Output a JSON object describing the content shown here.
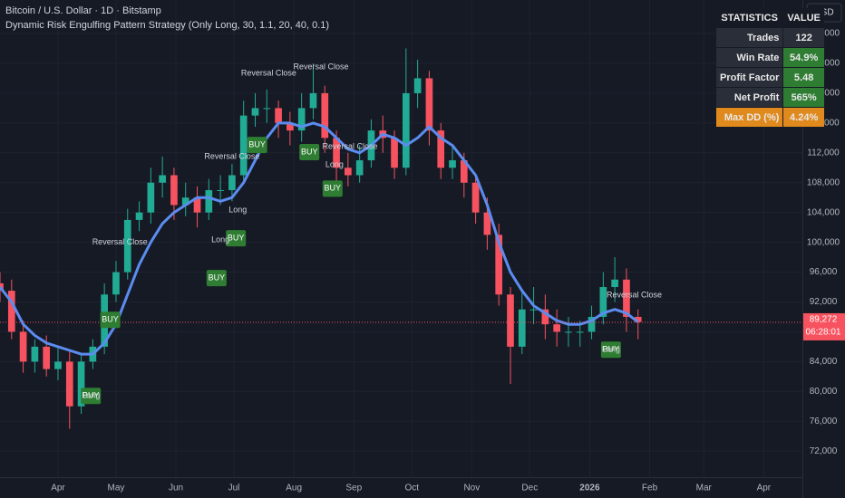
{
  "chart_data": {
    "type": "candlestick",
    "title": "Bitcoin / U.S. Dollar · 1D · Bitstamp",
    "subtitle": "Dynamic Risk Engulfing Pattern Strategy (Only Long, 30, 1.1, 20, 40, 0.1)",
    "currency": "USD",
    "up_color": "#22ab94",
    "down_color": "#f7525f",
    "x": [
      0,
      6,
      12,
      18,
      24,
      30,
      36,
      42,
      48,
      54,
      60,
      66,
      72,
      78,
      84,
      90,
      96,
      102,
      108,
      114,
      120,
      126,
      132,
      138,
      144,
      150,
      156,
      162,
      168,
      174,
      180,
      186,
      192,
      198,
      204,
      210,
      216,
      222,
      228,
      234,
      240,
      246,
      252,
      258,
      264,
      270,
      276,
      282,
      288,
      294,
      300,
      306,
      312,
      318,
      324,
      330
    ],
    "open": [
      94500,
      93500,
      88000,
      84000,
      86000,
      83000,
      84000,
      78000,
      84000,
      86000,
      93000,
      96000,
      103000,
      104000,
      108000,
      109000,
      105000,
      106000,
      104000,
      107000,
      107000,
      109000,
      117000,
      118000,
      118000,
      116000,
      115000,
      118000,
      120000,
      114000,
      110000,
      109000,
      111000,
      115000,
      114000,
      110000,
      120000,
      122000,
      115000,
      110000,
      111000,
      108000,
      104000,
      101000,
      93000,
      86000,
      91000,
      91000,
      89000,
      88000,
      88000,
      88000,
      90000,
      94000,
      95000,
      90000
    ],
    "high": [
      96000,
      95000,
      89500,
      87000,
      87500,
      86000,
      85500,
      85000,
      87000,
      94500,
      97500,
      104500,
      105500,
      110000,
      111500,
      110000,
      108000,
      107500,
      108500,
      109000,
      110500,
      119000,
      120000,
      120500,
      119000,
      117500,
      120000,
      124000,
      121000,
      115000,
      112000,
      113000,
      116500,
      117000,
      115000,
      126000,
      124500,
      123000,
      116000,
      113000,
      112000,
      109000,
      106000,
      102500,
      94000,
      93500,
      94000,
      93000,
      91000,
      90000,
      89500,
      91500,
      96000,
      98000,
      96500,
      91000
    ],
    "low": [
      92000,
      87000,
      82500,
      82500,
      82000,
      81500,
      75000,
      77000,
      83000,
      85000,
      92000,
      95000,
      101500,
      102500,
      106000,
      103000,
      103500,
      102000,
      103000,
      105000,
      105500,
      108000,
      115500,
      116000,
      114000,
      113000,
      113500,
      116500,
      112000,
      108000,
      107500,
      108000,
      110000,
      112000,
      108500,
      109000,
      118000,
      113000,
      108500,
      108500,
      106000,
      102500,
      99000,
      91500,
      81000,
      85000,
      89000,
      87000,
      86000,
      86000,
      86000,
      87000,
      89000,
      92000,
      88000,
      87000
    ],
    "close": [
      93500,
      88000,
      84000,
      86000,
      83000,
      84000,
      78000,
      84000,
      86000,
      93000,
      96000,
      103000,
      104000,
      108000,
      109000,
      105000,
      106000,
      104000,
      107000,
      107000,
      109000,
      117000,
      118000,
      118000,
      116000,
      115000,
      118000,
      120000,
      114000,
      110000,
      109000,
      111000,
      115000,
      114000,
      110000,
      120000,
      122000,
      115000,
      110000,
      111000,
      108000,
      104000,
      101000,
      93000,
      86000,
      91000,
      91000,
      89000,
      88000,
      88000,
      88000,
      90000,
      94000,
      95000,
      90000,
      89300
    ],
    "moving_average": {
      "color": "#5b8cf0",
      "values": [
        94000,
        92000,
        89000,
        87500,
        86500,
        86000,
        85500,
        85000,
        85000,
        86500,
        89000,
        93000,
        97000,
        100000,
        102500,
        104000,
        105000,
        106000,
        106000,
        105500,
        106000,
        108000,
        111000,
        114000,
        116000,
        116000,
        115500,
        116000,
        115500,
        114000,
        112500,
        112000,
        113000,
        114500,
        114000,
        113000,
        114000,
        115500,
        114000,
        113000,
        111000,
        109000,
        105000,
        100000,
        96000,
        93500,
        91500,
        90500,
        89500,
        89000,
        89000,
        89500,
        90500,
        91000,
        90500,
        89300
      ]
    },
    "xlim": [
      0,
      415
    ],
    "xticks": [
      {
        "value": 30,
        "label": "Apr"
      },
      {
        "value": 60,
        "label": "May"
      },
      {
        "value": 91,
        "label": "Jun"
      },
      {
        "value": 121,
        "label": "Jul"
      },
      {
        "value": 152,
        "label": "Aug"
      },
      {
        "value": 183,
        "label": "Sep"
      },
      {
        "value": 213,
        "label": "Oct"
      },
      {
        "value": 244,
        "label": "Nov"
      },
      {
        "value": 274,
        "label": "Dec"
      },
      {
        "value": 305,
        "label": "2026"
      },
      {
        "value": 336,
        "label": "Feb"
      },
      {
        "value": 364,
        "label": "Mar"
      },
      {
        "value": 395,
        "label": "Apr"
      }
    ],
    "ylim": [
      68500,
      132500
    ],
    "yticks": [
      {
        "value": 72000,
        "label": "72,000"
      },
      {
        "value": 76000,
        "label": "76,000"
      },
      {
        "value": 80000,
        "label": "80,000"
      },
      {
        "value": 84000,
        "label": "84,000"
      },
      {
        "value": 88000,
        "label": "88,000"
      },
      {
        "value": 92000,
        "label": "92,000"
      },
      {
        "value": 96000,
        "label": "96,000"
      },
      {
        "value": 100000,
        "label": "100,000"
      },
      {
        "value": 104000,
        "label": "104,000"
      },
      {
        "value": 108000,
        "label": "108,000"
      },
      {
        "value": 112000,
        "label": "112,000"
      },
      {
        "value": 116000,
        "label": "116,000"
      },
      {
        "value": 120000,
        "label": "120,000"
      },
      {
        "value": 124000,
        "label": "124,000"
      },
      {
        "value": 128000,
        "label": "128,000"
      }
    ],
    "last_price": {
      "value": 89272,
      "label": "89,272"
    },
    "countdown": "06:28:01",
    "annotations": [
      {
        "text": "Reversal Close",
        "x": 62,
        "y": 100000
      },
      {
        "text": "Reversal Close",
        "x": 139,
        "y": 122650
      },
      {
        "text": "Reversal Close",
        "x": 166,
        "y": 123500
      },
      {
        "text": "Reversal Close",
        "x": 120,
        "y": 111500
      },
      {
        "text": "Reversal Close",
        "x": 181,
        "y": 112800
      },
      {
        "text": "Reversal Close",
        "x": 328,
        "y": 92900
      },
      {
        "text": "BUY",
        "x": 57,
        "y": 89600
      },
      {
        "text": "BUY",
        "x": 112,
        "y": 95200
      },
      {
        "text": "BUY",
        "x": 122,
        "y": 100550
      },
      {
        "text": "BUY",
        "x": 133,
        "y": 113050
      },
      {
        "text": "BUY",
        "x": 160,
        "y": 112100
      },
      {
        "text": "BUY",
        "x": 172,
        "y": 107200
      },
      {
        "text": "BUY",
        "x": 47,
        "y": 79400
      },
      {
        "text": "BUY",
        "x": 316,
        "y": 85600
      },
      {
        "text": "Long",
        "x": 114,
        "y": 100300
      },
      {
        "text": "Long",
        "x": 123,
        "y": 104300
      },
      {
        "text": "Long",
        "x": 173,
        "y": 110400
      },
      {
        "text": "Long",
        "x": 47,
        "y": 79400
      },
      {
        "text": "Long",
        "x": 316,
        "y": 85600
      }
    ]
  },
  "statistics": {
    "header": [
      "STATISTICS",
      "VALUE"
    ],
    "rows": [
      [
        "Trades",
        "122"
      ],
      [
        "Win Rate",
        "54.9%"
      ],
      [
        "Profit Factor",
        "5.48"
      ],
      [
        "Net Profit",
        "565%"
      ],
      [
        "Max DD (%)",
        "4.24%"
      ]
    ]
  }
}
